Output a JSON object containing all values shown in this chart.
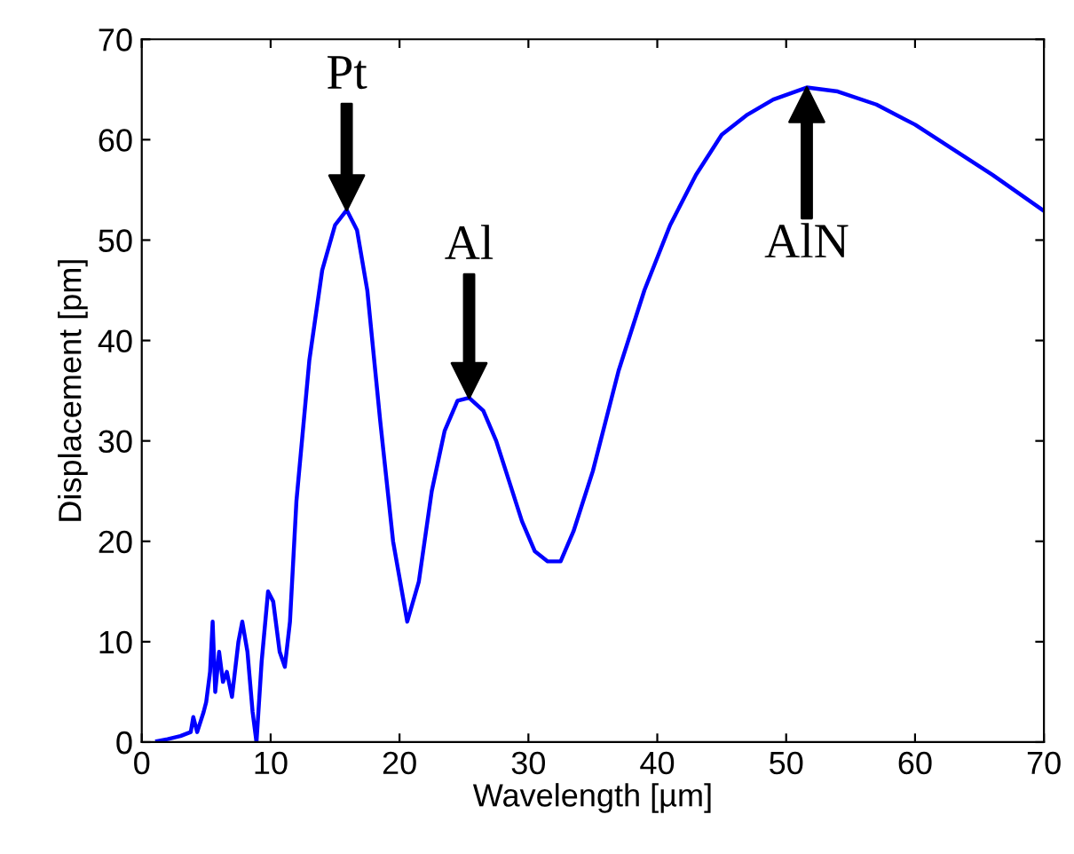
{
  "chart_data": {
    "type": "line",
    "xlabel": "Wavelength [µm]",
    "ylabel": "Displacement [pm]",
    "x": [
      1.2,
      2,
      3,
      3.8,
      4,
      4.3,
      4.8,
      5.0,
      5.3,
      5.5,
      5.7,
      6,
      6.3,
      6.6,
      7,
      7.5,
      7.8,
      8.2,
      8.6,
      8.9,
      9.3,
      9.8,
      10.2,
      10.7,
      11.1,
      11.5,
      12,
      13,
      14,
      15,
      15.9,
      16.7,
      17.5,
      18.5,
      19.5,
      20.6,
      21.5,
      22.5,
      23.5,
      24.5,
      25.4,
      26.5,
      27.5,
      28.5,
      29.5,
      30.5,
      31.5,
      32.5,
      33.5,
      35,
      37,
      39,
      41,
      43,
      45,
      47,
      49,
      51.6,
      54,
      57,
      60,
      63,
      66,
      70
    ],
    "series": [
      {
        "color": "#0000ff",
        "values": [
          0.1,
          0.3,
          0.6,
          1,
          2.5,
          1,
          3,
          4,
          7,
          12,
          5,
          9,
          6,
          7,
          4.5,
          10,
          12,
          9,
          3,
          0,
          8,
          15,
          14,
          9,
          7.5,
          12,
          24,
          38,
          47,
          51.5,
          53,
          51,
          45,
          32,
          20,
          12,
          16,
          25,
          31,
          34,
          34.3,
          33,
          30,
          26,
          22,
          19,
          18,
          18,
          21,
          27,
          37,
          45,
          51.5,
          56.5,
          60.5,
          62.5,
          64,
          65.2,
          64.8,
          63.5,
          61.5,
          59,
          56.5,
          52.9
        ]
      }
    ],
    "xlim": [
      0,
      70
    ],
    "ylim": [
      0,
      70
    ],
    "xticks": [
      0,
      10,
      20,
      30,
      40,
      50,
      60,
      70
    ],
    "yticks": [
      0,
      10,
      20,
      30,
      40,
      50,
      60,
      70
    ],
    "annotations": [
      {
        "text": "Pt",
        "x": 15.9,
        "y": 53
      },
      {
        "text": "Al",
        "x": 25.4,
        "y": 34.3
      },
      {
        "text": "AlN",
        "x": 51.6,
        "y": 65.2
      }
    ]
  }
}
